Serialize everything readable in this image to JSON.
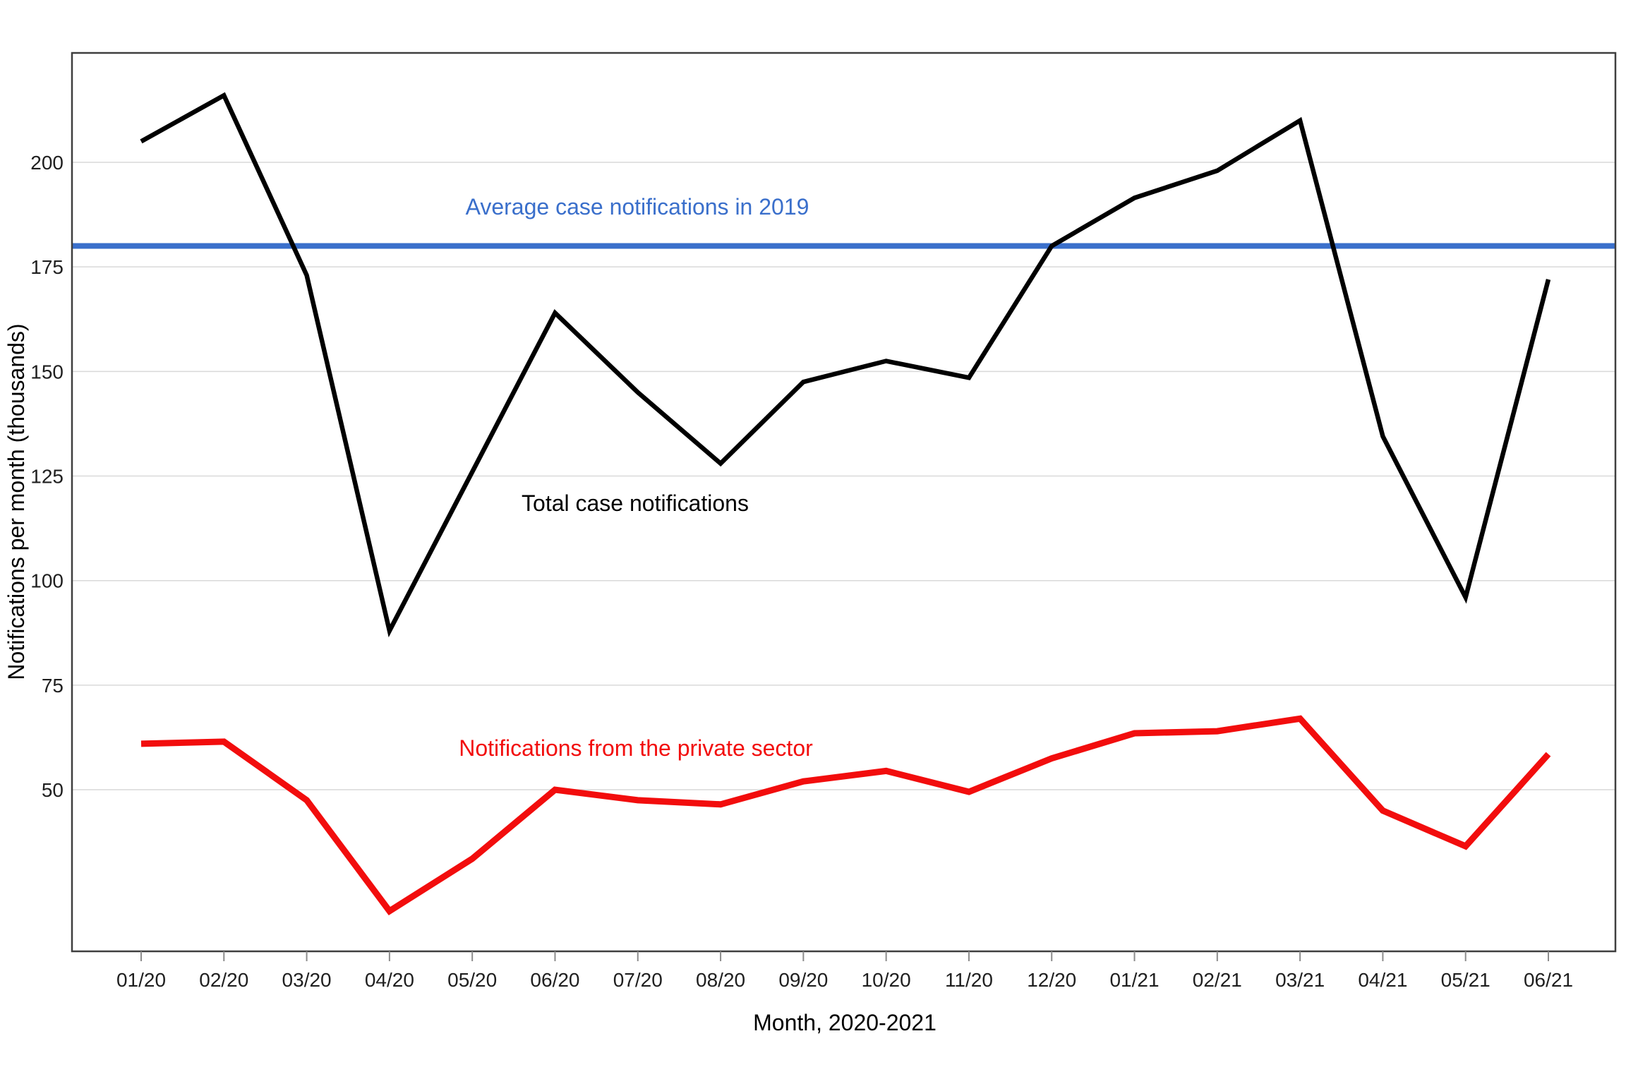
{
  "chart_data": {
    "type": "line",
    "title": "",
    "xlabel": "Month, 2020-2021",
    "ylabel": "Notifications per month (thousands)",
    "categories": [
      "01/20",
      "02/20",
      "03/20",
      "04/20",
      "05/20",
      "06/20",
      "07/20",
      "08/20",
      "09/20",
      "10/20",
      "11/20",
      "12/20",
      "01/21",
      "02/21",
      "03/21",
      "04/21",
      "05/21",
      "06/21"
    ],
    "series": [
      {
        "name": "Total case notifications",
        "color": "#000000",
        "values": [
          205,
          216,
          173,
          88,
          126,
          164,
          145,
          128,
          147.5,
          152.5,
          148.5,
          180,
          191.5,
          198,
          210,
          134.5,
          96,
          172
        ]
      },
      {
        "name": "Notifications from the private sector",
        "color": "#F20D0D",
        "values": [
          61,
          61.5,
          47.5,
          21,
          33.5,
          50,
          47.5,
          46.5,
          52,
          54.5,
          49.5,
          57.5,
          63.5,
          64,
          67,
          45,
          36.5,
          58.5
        ]
      }
    ],
    "reference_line": {
      "label": "Average case notifications in 2019",
      "value": 180,
      "color": "#3A6FCB"
    },
    "yticks": [
      50,
      75,
      100,
      125,
      150,
      175,
      200
    ],
    "ylim": [
      11,
      226
    ],
    "grid": "horizontal-only",
    "legend_position": "inline-annotations",
    "background": "#ffffff"
  }
}
